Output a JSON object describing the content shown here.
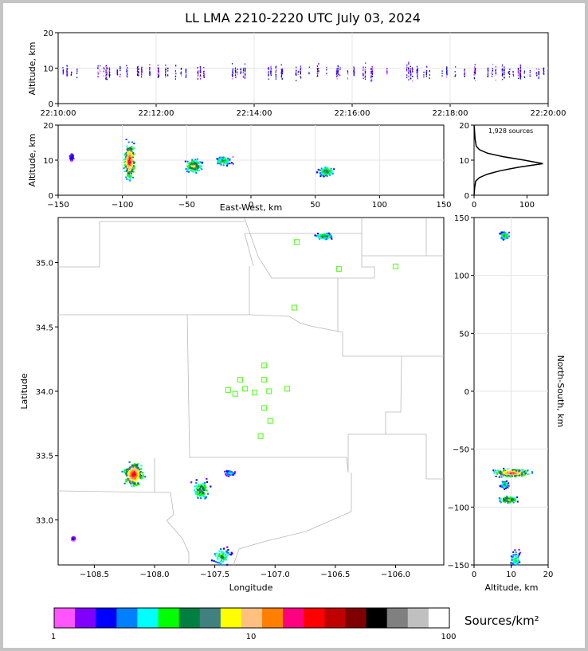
{
  "title": "LL LMA 2210-2220 UTC July 03, 2024",
  "colorbar": {
    "label": "Sources/km²",
    "ticks": [
      "1",
      "10",
      "100"
    ],
    "colors": [
      "#ff55ff",
      "#8000ff",
      "#0000ff",
      "#0080ff",
      "#00ffff",
      "#00ff00",
      "#008040",
      "#408080",
      "#ffff00",
      "#ffc080",
      "#ff8000",
      "#ff0080",
      "#ff0000",
      "#c00000",
      "#800000",
      "#000000",
      "#808080",
      "#c0c0c0",
      "#ffffff"
    ]
  },
  "panels": {
    "time_height": {
      "ylabel": "Altitude, km",
      "yticks": [
        "0",
        "10",
        "20"
      ],
      "xticks": [
        "22:10:00",
        "22:12:00",
        "22:14:00",
        "22:16:00",
        "22:18:00",
        "22:20:00"
      ]
    },
    "ew_height": {
      "ylabel": "Altitude, km",
      "xlabel": "East-West, km",
      "yticks": [
        "0",
        "10",
        "20"
      ],
      "xticks": [
        "−150",
        "−100",
        "−50",
        "0",
        "50",
        "100",
        "150"
      ]
    },
    "histogram": {
      "label": "1,928 sources",
      "yticks": [
        "0",
        "10",
        "20"
      ],
      "xticks": [
        "0",
        "100"
      ]
    },
    "map": {
      "xlabel": "Longitude",
      "ylabel": "Latitude",
      "xticks": [
        "−108.5",
        "−108.0",
        "−107.5",
        "−107.0",
        "−106.5",
        "−106.0"
      ],
      "yticks": [
        "33.0",
        "33.5",
        "34.0",
        "34.5",
        "35.0"
      ]
    },
    "ns_height": {
      "xlabel": "Altitude, km",
      "ylabel": "North-South, km",
      "xticks": [
        "0",
        "10",
        "20"
      ],
      "yticks": [
        "−150",
        "−100",
        "−50",
        "0",
        "50",
        "100",
        "150"
      ]
    }
  },
  "chart_data": [
    {
      "type": "scatter",
      "name": "time-height",
      "x_range": [
        "22:10:00",
        "22:20:00"
      ],
      "ylim": [
        0,
        20
      ],
      "grid": true,
      "activity_minutes_with_sources": [
        0.0,
        10.0
      ],
      "typical_altitude_km": [
        5,
        14
      ]
    },
    {
      "type": "heatmap",
      "name": "east-west vs altitude",
      "xlim": [
        -150,
        150
      ],
      "ylim": [
        0,
        20
      ],
      "grid": true,
      "clusters": [
        {
          "x": -95,
          "y": 10,
          "x_extent": [
            -100,
            -88
          ],
          "y_extent": [
            3,
            17
          ],
          "peak": 30
        },
        {
          "x": -45,
          "y": 8.5,
          "x_extent": [
            -55,
            -35
          ],
          "y_extent": [
            6,
            12
          ],
          "peak": 10
        },
        {
          "x": -22,
          "y": 10,
          "x_extent": [
            -33,
            -15
          ],
          "y_extent": [
            8,
            12
          ],
          "peak": 5
        },
        {
          "x": 58,
          "y": 7,
          "x_extent": [
            50,
            68
          ],
          "y_extent": [
            5,
            9
          ],
          "peak": 8
        },
        {
          "x": -140,
          "y": 11,
          "x_extent": [
            -143,
            -138
          ],
          "y_extent": [
            9,
            12
          ],
          "peak": 2
        }
      ]
    },
    {
      "type": "line",
      "name": "altitude histogram",
      "total_sources": 1928,
      "xlim": [
        0,
        140
      ],
      "ylim": [
        0,
        20
      ],
      "altitude_km": [
        0,
        2,
        4,
        5,
        6,
        7,
        8,
        9,
        10,
        11,
        12,
        13,
        14,
        16,
        18,
        20
      ],
      "count": [
        0,
        1,
        3,
        10,
        25,
        50,
        85,
        130,
        95,
        55,
        25,
        10,
        4,
        2,
        1,
        0
      ]
    },
    {
      "type": "scatter",
      "name": "plan view",
      "xlim": [
        -108.8,
        -105.6
      ],
      "ylim": [
        32.65,
        35.35
      ],
      "stations": [
        {
          "lon": -106.82,
          "lat": 35.16
        },
        {
          "lon": -106.47,
          "lat": 34.95
        },
        {
          "lon": -106.0,
          "lat": 34.97
        },
        {
          "lon": -106.84,
          "lat": 34.65
        },
        {
          "lon": -107.09,
          "lat": 34.2
        },
        {
          "lon": -107.29,
          "lat": 34.09
        },
        {
          "lon": -107.09,
          "lat": 34.09
        },
        {
          "lon": -107.39,
          "lat": 34.01
        },
        {
          "lon": -107.33,
          "lat": 33.98
        },
        {
          "lon": -107.25,
          "lat": 34.02
        },
        {
          "lon": -107.17,
          "lat": 33.99
        },
        {
          "lon": -107.05,
          "lat": 34.0
        },
        {
          "lon": -106.9,
          "lat": 34.02
        },
        {
          "lon": -107.09,
          "lat": 33.87
        },
        {
          "lon": -107.04,
          "lat": 33.77
        },
        {
          "lon": -107.12,
          "lat": 33.65
        }
      ],
      "clusters": [
        {
          "lon": -108.18,
          "lat": 33.36,
          "lon_extent": [
            -108.28,
            -108.05
          ],
          "lat_extent": [
            33.15,
            33.42
          ],
          "peak": 30
        },
        {
          "lon": -107.62,
          "lat": 33.24,
          "lon_extent": [
            -107.72,
            -107.5
          ],
          "lat_extent": [
            33.1,
            33.32
          ],
          "peak": 8
        },
        {
          "lon": -107.45,
          "lat": 32.72,
          "lon_extent": [
            -107.55,
            -107.32
          ],
          "lat_extent": [
            32.65,
            32.85
          ],
          "peak": 5
        },
        {
          "lon": -106.6,
          "lat": 35.21,
          "lon_extent": [
            -106.68,
            -106.48
          ],
          "lat_extent": [
            35.18,
            35.25
          ],
          "peak": 8
        },
        {
          "lon": -107.38,
          "lat": 33.37,
          "lon_extent": [
            -107.45,
            -107.33
          ],
          "lat_extent": [
            33.33,
            33.4
          ],
          "peak": 3
        },
        {
          "lon": -108.68,
          "lat": 32.86,
          "lon_extent": [
            -108.7,
            -108.66
          ],
          "lat_extent": [
            32.84,
            32.88
          ],
          "peak": 2
        }
      ]
    },
    {
      "type": "heatmap",
      "name": "altitude vs north-south",
      "xlim": [
        0,
        20
      ],
      "ylim": [
        -150,
        150
      ],
      "grid": true,
      "clusters": [
        {
          "x": 10,
          "y": -70,
          "x_extent": [
            2,
            16
          ],
          "y_extent": [
            -75,
            -65
          ],
          "peak": 25
        },
        {
          "x": 9,
          "y": -93,
          "x_extent": [
            5,
            13
          ],
          "y_extent": [
            -97,
            -88
          ],
          "peak": 10
        },
        {
          "x": 8,
          "y": -80,
          "x_extent": [
            7,
            10
          ],
          "y_extent": [
            -85,
            -75
          ],
          "peak": 6
        },
        {
          "x": 11,
          "y": -145,
          "x_extent": [
            9,
            13
          ],
          "y_extent": [
            -150,
            -125
          ],
          "peak": 4
        },
        {
          "x": 8,
          "y": 135,
          "x_extent": [
            6,
            10
          ],
          "y_extent": [
            130,
            140
          ],
          "peak": 5
        }
      ]
    }
  ]
}
